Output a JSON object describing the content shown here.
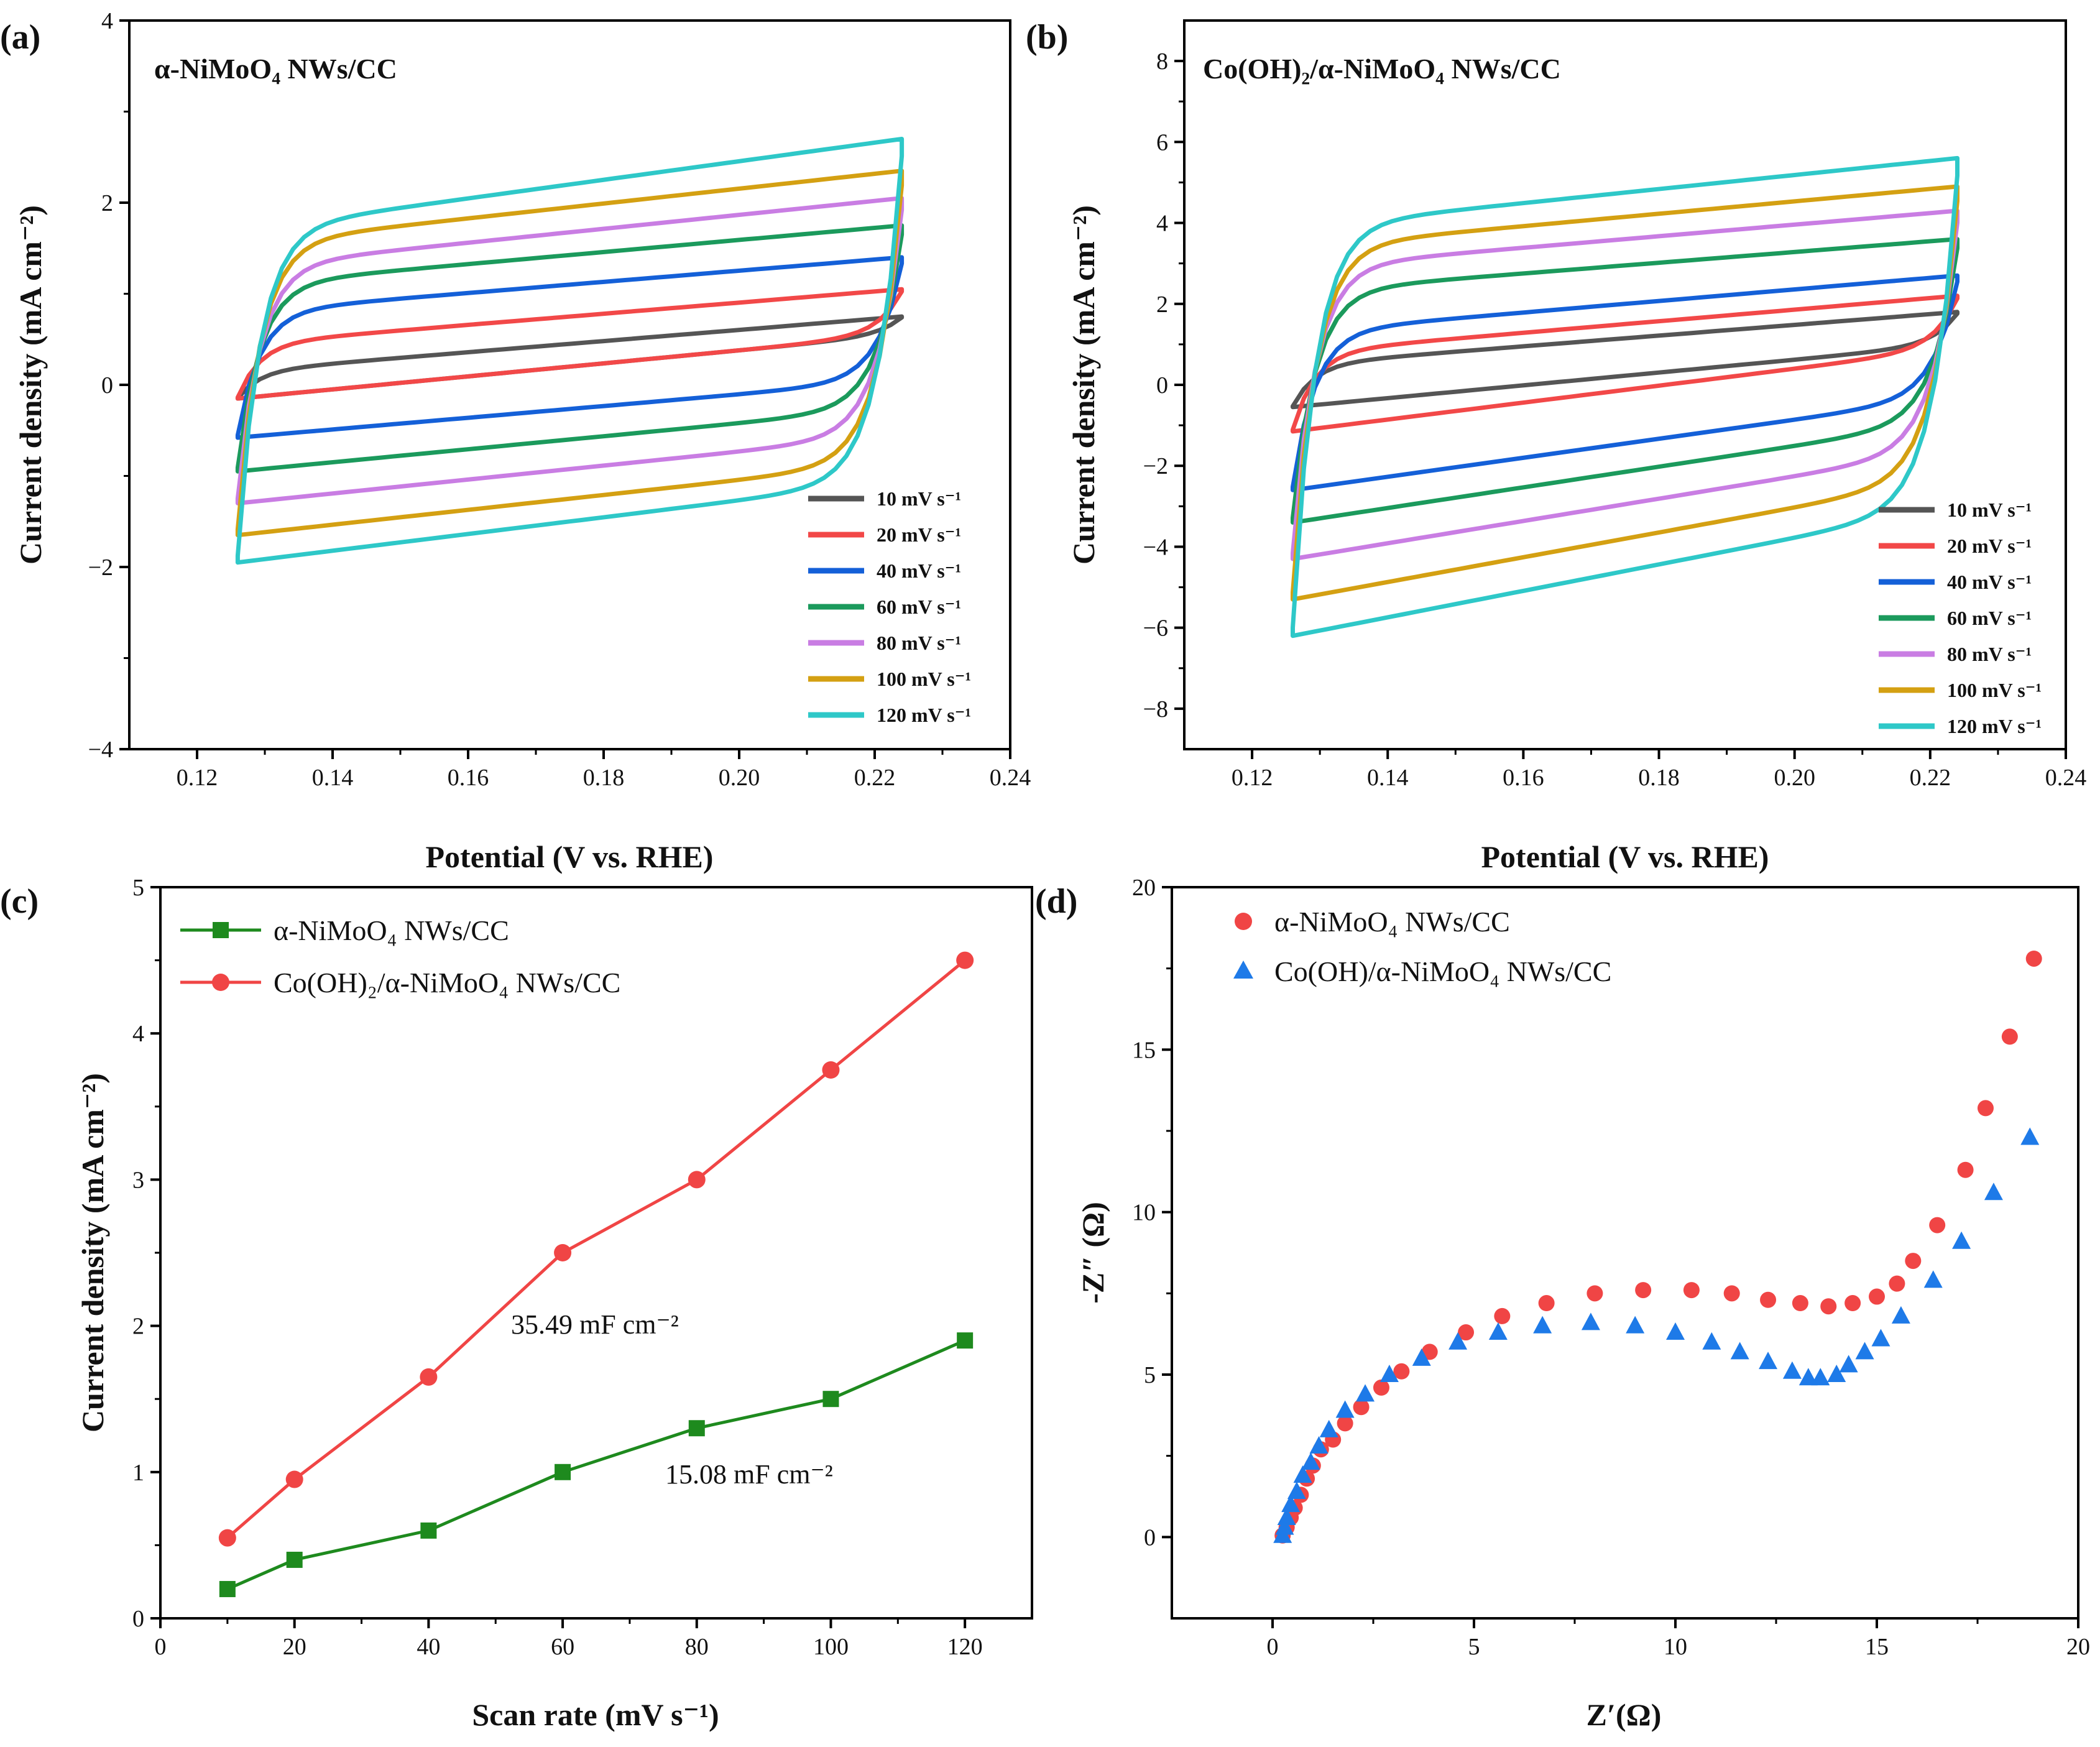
{
  "colors": {
    "s10": "#555555",
    "s20": "#f24848",
    "s40": "#1460d8",
    "s60": "#1b9a5c",
    "s80": "#c97de3",
    "s100": "#d4a012",
    "s120": "#2ec8c8",
    "green": "#1e8a1e",
    "red": "#f04545",
    "blue": "#1e7ae8"
  },
  "chart_data": [
    {
      "panel": "(a)",
      "type": "line",
      "title": "α-NiMoO₄ NWs/CC",
      "xlabel": "Potential (V vs. RHE)",
      "ylabel": "Current density (mA cm⁻²)",
      "xlim": [
        0.11,
        0.24
      ],
      "ylim": [
        -4,
        4
      ],
      "xticks": [
        "0.12",
        "0.14",
        "0.16",
        "0.18",
        "0.20",
        "0.22",
        "0.24"
      ],
      "yticks": [
        "4",
        "2",
        "0",
        "−2",
        "−4"
      ],
      "x_range": [
        0.126,
        0.224
      ],
      "series": [
        {
          "name": "10 mV s⁻¹",
          "upper": [
            0.15,
            0.75
          ],
          "lower": [
            -0.15,
            0.55
          ]
        },
        {
          "name": "20 mV s⁻¹",
          "upper": [
            0.45,
            1.05
          ],
          "lower": [
            -0.15,
            0.55
          ]
        },
        {
          "name": "40 mV s⁻¹",
          "upper": [
            0.8,
            1.4
          ],
          "lower": [
            -0.58,
            0.05
          ]
        },
        {
          "name": "60 mV s⁻¹",
          "upper": [
            1.1,
            1.75
          ],
          "lower": [
            -0.95,
            -0.25
          ]
        },
        {
          "name": "80 mV s⁻¹",
          "upper": [
            1.3,
            2.05
          ],
          "lower": [
            -1.3,
            -0.55
          ]
        },
        {
          "name": "100 mV s⁻¹",
          "upper": [
            1.55,
            2.35
          ],
          "lower": [
            -1.65,
            -0.85
          ]
        },
        {
          "name": "120 mV s⁻¹",
          "upper": [
            1.7,
            2.7
          ],
          "lower": [
            -1.95,
            -1.05
          ]
        }
      ]
    },
    {
      "panel": "(b)",
      "type": "line",
      "title": "Co(OH)₂/α-NiMoO₄ NWs/CC",
      "xlabel": "Potential (V vs. RHE)",
      "ylabel": "Current density (mA cm⁻²)",
      "xlim": [
        0.11,
        0.24
      ],
      "ylim": [
        -9,
        9
      ],
      "xticks": [
        "0.12",
        "0.14",
        "0.16",
        "0.18",
        "0.20",
        "0.22",
        "0.24"
      ],
      "yticks": [
        "8",
        "6",
        "4",
        "2",
        "0",
        "−2",
        "−4",
        "−6",
        "−8"
      ],
      "x_range": [
        0.126,
        0.224
      ],
      "series": [
        {
          "name": "10 mV s⁻¹",
          "upper": [
            0.5,
            1.8
          ],
          "lower": [
            -0.55,
            1.0
          ]
        },
        {
          "name": "20 mV s⁻¹",
          "upper": [
            0.8,
            2.2
          ],
          "lower": [
            -1.15,
            0.9
          ]
        },
        {
          "name": "40 mV s⁻¹",
          "upper": [
            1.3,
            2.7
          ],
          "lower": [
            -2.6,
            -0.3
          ]
        },
        {
          "name": "60 mV s⁻¹",
          "upper": [
            2.3,
            3.6
          ],
          "lower": [
            -3.4,
            -0.9
          ]
        },
        {
          "name": "80 mV s⁻¹",
          "upper": [
            2.9,
            4.3
          ],
          "lower": [
            -4.3,
            -1.6
          ]
        },
        {
          "name": "100 mV s⁻¹",
          "upper": [
            3.4,
            4.9
          ],
          "lower": [
            -5.3,
            -2.3
          ]
        },
        {
          "name": "120 mV s⁻¹",
          "upper": [
            3.9,
            5.6
          ],
          "lower": [
            -6.2,
            -3.0
          ]
        }
      ]
    },
    {
      "panel": "(c)",
      "type": "line",
      "xlabel": "Scan rate (mV s⁻¹)",
      "ylabel": "Current density (mA cm⁻²)",
      "xlim": [
        0,
        130
      ],
      "ylim": [
        0,
        5
      ],
      "xticks": [
        "0",
        "20",
        "40",
        "60",
        "80",
        "100",
        "120"
      ],
      "yticks": [
        "0",
        "1",
        "2",
        "3",
        "4",
        "5"
      ],
      "x": [
        10,
        20,
        40,
        60,
        80,
        100,
        120
      ],
      "series": [
        {
          "name": "α-NiMoO₄ NWs/CC",
          "marker": "square",
          "values": [
            0.2,
            0.4,
            0.6,
            1.0,
            1.3,
            1.5,
            1.9
          ]
        },
        {
          "name": "Co(OH)₂/α-NiMoO₄ NWs/CC",
          "marker": "circle",
          "values": [
            0.55,
            0.95,
            1.65,
            2.5,
            3.0,
            3.75,
            4.5
          ]
        }
      ],
      "annotations": [
        "35.49 mF cm⁻²",
        "15.08 mF cm⁻²"
      ]
    },
    {
      "panel": "(d)",
      "type": "scatter",
      "xlabel": "Z′(Ω)",
      "ylabel": "-Z″ (Ω)",
      "xlim": [
        -2.5,
        20
      ],
      "ylim": [
        -2.5,
        20
      ],
      "xticks": [
        "0",
        "5",
        "10",
        "15",
        "20"
      ],
      "yticks": [
        "0",
        "5",
        "10",
        "15",
        "20"
      ],
      "series": [
        {
          "name": "α-NiMoO₄ NWs/CC",
          "marker": "circle",
          "points": [
            [
              0.25,
              0.05
            ],
            [
              0.35,
              0.3
            ],
            [
              0.45,
              0.6
            ],
            [
              0.55,
              0.9
            ],
            [
              0.7,
              1.3
            ],
            [
              0.85,
              1.8
            ],
            [
              1.0,
              2.2
            ],
            [
              1.2,
              2.7
            ],
            [
              1.5,
              3.0
            ],
            [
              1.8,
              3.5
            ],
            [
              2.2,
              4.0
            ],
            [
              2.7,
              4.6
            ],
            [
              3.2,
              5.1
            ],
            [
              3.9,
              5.7
            ],
            [
              4.8,
              6.3
            ],
            [
              5.7,
              6.8
            ],
            [
              6.8,
              7.2
            ],
            [
              8.0,
              7.5
            ],
            [
              9.2,
              7.6
            ],
            [
              10.4,
              7.6
            ],
            [
              11.4,
              7.5
            ],
            [
              12.3,
              7.3
            ],
            [
              13.1,
              7.2
            ],
            [
              13.8,
              7.1
            ],
            [
              14.4,
              7.2
            ],
            [
              15.0,
              7.4
            ],
            [
              15.5,
              7.8
            ],
            [
              15.9,
              8.5
            ],
            [
              16.5,
              9.6
            ],
            [
              17.2,
              11.3
            ],
            [
              17.7,
              13.2
            ],
            [
              18.3,
              15.4
            ],
            [
              18.9,
              17.8
            ]
          ]
        },
        {
          "name": "Co(OH)/α-NiMoO₄ NWs/CC",
          "marker": "triangle",
          "points": [
            [
              0.25,
              0.05
            ],
            [
              0.3,
              0.3
            ],
            [
              0.35,
              0.6
            ],
            [
              0.45,
              1.0
            ],
            [
              0.6,
              1.4
            ],
            [
              0.75,
              1.9
            ],
            [
              0.95,
              2.3
            ],
            [
              1.15,
              2.8
            ],
            [
              1.4,
              3.3
            ],
            [
              1.8,
              3.9
            ],
            [
              2.3,
              4.4
            ],
            [
              2.9,
              5.0
            ],
            [
              3.7,
              5.5
            ],
            [
              4.6,
              6.0
            ],
            [
              5.6,
              6.3
            ],
            [
              6.7,
              6.5
            ],
            [
              7.9,
              6.6
            ],
            [
              9.0,
              6.5
            ],
            [
              10.0,
              6.3
            ],
            [
              10.9,
              6.0
            ],
            [
              11.6,
              5.7
            ],
            [
              12.3,
              5.4
            ],
            [
              12.9,
              5.1
            ],
            [
              13.3,
              4.9
            ],
            [
              13.6,
              4.9
            ],
            [
              14.0,
              5.0
            ],
            [
              14.3,
              5.3
            ],
            [
              14.7,
              5.7
            ],
            [
              15.1,
              6.1
            ],
            [
              15.6,
              6.8
            ],
            [
              16.4,
              7.9
            ],
            [
              17.1,
              9.1
            ],
            [
              17.9,
              10.6
            ],
            [
              18.8,
              12.3
            ]
          ]
        }
      ]
    }
  ]
}
